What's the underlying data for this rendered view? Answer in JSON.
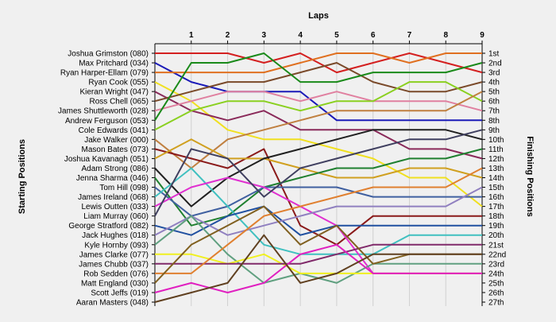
{
  "chart_data": {
    "type": "line",
    "title": "",
    "xlabel": "Laps",
    "ylabel_left": "Starting Positions",
    "ylabel_right": "Finishing Positions",
    "x": [
      0,
      1,
      2,
      3,
      4,
      5,
      6,
      7,
      8,
      9
    ],
    "x_tick_labels": [
      "1",
      "2",
      "3",
      "4",
      "5",
      "6",
      "7",
      "8",
      "9"
    ],
    "ylim": [
      1,
      27
    ],
    "drivers": [
      "Joshua Grimston (080)",
      "Max Pritchard (034)",
      "Ryan Harper-Ellam (079)",
      "Ryan Cook (055)",
      "Kieran Wright (047)",
      "Ross Chell (065)",
      "James Shuttleworth (028)",
      "Andrew Ferguson (053)",
      "Cole Edwards (041)",
      "Jake Walker (000)",
      "Mason Bates (073)",
      "Joshua Kavanagh (051)",
      "Adam Strong (086)",
      "Jenna Sharma (046)",
      "Tom Hill (098)",
      "James Ireland (068)",
      "Lewis Outten (033)",
      "Liam Murray (060)",
      "George Stratford (082)",
      "Jack Hughes (018)",
      "Kyle Hornby (093)",
      "James Clarke (077)",
      "James Chubb (037)",
      "Rob Sedden (076)",
      "Matt England (030)",
      "Scott Jeffs (019)",
      "Aaran Masters (048)"
    ],
    "finishing_positions": [
      "1st",
      "2nd",
      "3rd",
      "4th",
      "5th",
      "6th",
      "7th",
      "8th",
      "9th",
      "10th",
      "11th",
      "12th",
      "13th",
      "14th",
      "15th",
      "16th",
      "17th",
      "18th",
      "19th",
      "20th",
      "21st",
      "22nd",
      "23rd",
      "24th",
      "25th",
      "26th",
      "27th"
    ],
    "series": [
      {
        "color": "#d42020",
        "values": [
          1,
          1,
          1,
          2,
          1,
          3,
          2,
          1,
          2,
          3
        ]
      },
      {
        "color": "#1a1ab8",
        "values": [
          2,
          4,
          5,
          5,
          5,
          8,
          8,
          8,
          8,
          8
        ]
      },
      {
        "color": "#e07020",
        "values": [
          3,
          3,
          3,
          3,
          2,
          1,
          1,
          2,
          1,
          1
        ]
      },
      {
        "color": "#f0e020",
        "values": [
          4,
          6,
          9,
          10,
          10,
          11,
          12,
          14,
          14,
          17
        ]
      },
      {
        "color": "#8a2a5a",
        "values": [
          5,
          7,
          8,
          7,
          9,
          9,
          9,
          11,
          11,
          12
        ]
      },
      {
        "color": "#7a4a2a",
        "values": [
          6,
          5,
          4,
          4,
          3,
          2,
          4,
          5,
          5,
          4
        ]
      },
      {
        "color": "#e080a0",
        "values": [
          7,
          6,
          5,
          5,
          6,
          5,
          6,
          6,
          6,
          7
        ]
      },
      {
        "color": "#1a8a1a",
        "values": [
          8,
          2,
          2,
          1,
          4,
          4,
          3,
          3,
          3,
          2
        ]
      },
      {
        "color": "#8ad020",
        "values": [
          9,
          7,
          6,
          6,
          7,
          6,
          6,
          4,
          4,
          6
        ]
      },
      {
        "color": "#c08040",
        "values": [
          10,
          13,
          10,
          9,
          8,
          7,
          7,
          7,
          7,
          5
        ]
      },
      {
        "color": "#8a1a1a",
        "values": [
          11,
          12,
          13,
          11,
          19,
          21,
          18,
          18,
          18,
          18
        ]
      },
      {
        "color": "#d0a020",
        "values": [
          12,
          10,
          12,
          12,
          13,
          14,
          14,
          13,
          13,
          14
        ]
      },
      {
        "color": "#202020",
        "values": [
          13,
          17,
          14,
          12,
          11,
          10,
          9,
          9,
          9,
          10
        ]
      },
      {
        "color": "#208030",
        "values": [
          14,
          19,
          18,
          15,
          14,
          13,
          13,
          12,
          12,
          11
        ]
      },
      {
        "color": "#4060a0",
        "values": [
          15,
          18,
          17,
          15,
          15,
          15,
          16,
          16,
          16,
          16
        ]
      },
      {
        "color": "#40c0c0",
        "values": [
          16,
          13,
          17,
          21,
          22,
          22,
          22,
          20,
          20,
          20
        ]
      },
      {
        "color": "#e030d0",
        "values": [
          17,
          15,
          14,
          15,
          17,
          19,
          24,
          24,
          24,
          24
        ]
      },
      {
        "color": "#404060",
        "values": [
          18,
          11,
          12,
          16,
          13,
          12,
          11,
          10,
          10,
          9
        ]
      },
      {
        "color": "#2050a0",
        "values": [
          19,
          20,
          18,
          17,
          20,
          19,
          19,
          19,
          19,
          19
        ]
      },
      {
        "color": "#9080c0",
        "values": [
          20,
          18,
          20,
          19,
          18,
          17,
          17,
          17,
          17,
          15
        ]
      },
      {
        "color": "#60a080",
        "values": [
          21,
          18,
          22,
          25,
          24,
          25,
          23,
          23,
          23,
          23
        ]
      },
      {
        "color": "#f0f020",
        "values": [
          22,
          22,
          23,
          22,
          24,
          24,
          24,
          24,
          24,
          24
        ]
      },
      {
        "color": "#802a6a",
        "values": [
          23,
          23,
          23,
          23,
          23,
          22,
          21,
          21,
          21,
          21
        ]
      },
      {
        "color": "#e08030",
        "values": [
          24,
          24,
          21,
          18,
          17,
          16,
          15,
          15,
          15,
          13
        ]
      },
      {
        "color": "#806020",
        "values": [
          25,
          21,
          19,
          17,
          21,
          19,
          23,
          22,
          22,
          22
        ]
      },
      {
        "color": "#e020c0",
        "values": [
          26,
          25,
          26,
          25,
          22,
          21,
          24,
          24,
          24,
          24
        ]
      },
      {
        "color": "#604020",
        "values": [
          27,
          26,
          25,
          20,
          25,
          24,
          22,
          22,
          22,
          22
        ]
      }
    ],
    "grid": "vertical",
    "legend": "none"
  }
}
